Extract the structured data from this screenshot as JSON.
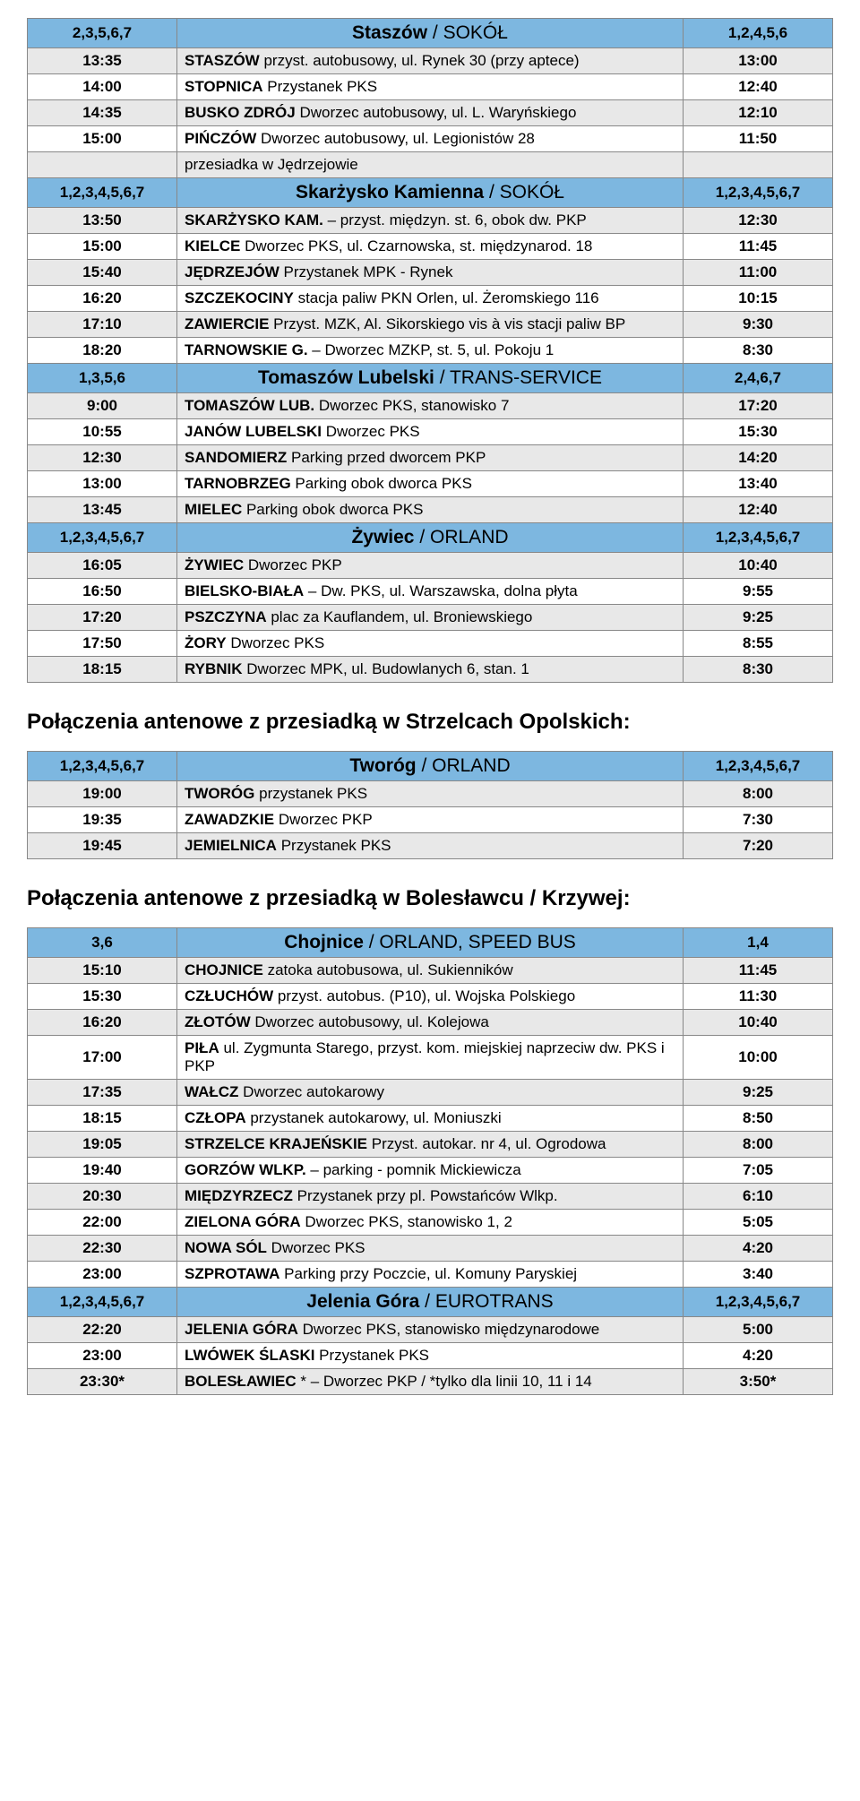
{
  "tables": [
    {
      "rows": [
        {
          "type": "header",
          "left": "2,3,5,6,7",
          "city": "Staszów",
          "operator": " / SOKÓŁ",
          "right": "1,2,4,5,6"
        },
        {
          "type": "grey",
          "left": "13:35",
          "stop": "<b>STASZÓW</b> przyst. autobusowy, ul. Rynek 30 (przy aptece)",
          "right": "13:00"
        },
        {
          "type": "white",
          "left": "14:00",
          "stop": "<b>STOPNICA</b> Przystanek PKS",
          "right": "12:40"
        },
        {
          "type": "grey",
          "left": "14:35",
          "stop": "<b>BUSKO ZDRÓJ</b> Dworzec autobusowy, ul. L. Waryńskiego",
          "right": "12:10"
        },
        {
          "type": "white",
          "left": "15:00",
          "stop": "<b>PIŃCZÓW</b> Dworzec autobusowy, ul. Legionistów 28",
          "right": "11:50"
        },
        {
          "type": "grey",
          "left": "",
          "stop": "przesiadka w Jędrzejowie",
          "right": ""
        },
        {
          "type": "header",
          "left": "1,2,3,4,5,6,7",
          "city": "Skarżysko Kamienna",
          "operator": " / SOKÓŁ",
          "right": "1,2,3,4,5,6,7"
        },
        {
          "type": "grey",
          "left": "13:50",
          "stop": "<b>SKARŻYSKO KAM.</b> – przyst. międzyn. st. 6, obok dw. PKP",
          "right": "12:30"
        },
        {
          "type": "white",
          "left": "15:00",
          "stop": "<b>KIELCE</b> Dworzec PKS, ul. Czarnowska, st. międzynarod. 18",
          "right": "11:45"
        },
        {
          "type": "grey",
          "left": "15:40",
          "stop": "<b>JĘDRZEJÓW</b> Przystanek MPK - Rynek",
          "right": "11:00"
        },
        {
          "type": "white",
          "left": "16:20",
          "stop": "<b>SZCZEKOCINY</b> stacja paliw PKN Orlen, ul. Żeromskiego 116",
          "right": "10:15"
        },
        {
          "type": "grey",
          "left": "17:10",
          "stop": "<b>ZAWIERCIE</b> Przyst. MZK, Al. Sikorskiego vis à vis stacji paliw BP",
          "right": "9:30"
        },
        {
          "type": "white",
          "left": "18:20",
          "stop": "<b>TARNOWSKIE G.</b> – Dworzec MZKP, st. 5, ul. Pokoju 1",
          "right": "8:30"
        },
        {
          "type": "header",
          "left": "1,3,5,6",
          "city": "Tomaszów Lubelski",
          "operator": " / TRANS-SERVICE",
          "right": "2,4,6,7"
        },
        {
          "type": "grey",
          "left": "9:00",
          "stop": "<b>TOMASZÓW LUB.</b> Dworzec PKS, stanowisko 7",
          "right": "17:20"
        },
        {
          "type": "white",
          "left": "10:55",
          "stop": "<b>JANÓW LUBELSKI</b> Dworzec PKS",
          "right": "15:30"
        },
        {
          "type": "grey",
          "left": "12:30",
          "stop": "<b>SANDOMIERZ</b> Parking przed dworcem PKP",
          "right": "14:20"
        },
        {
          "type": "white",
          "left": "13:00",
          "stop": "<b>TARNOBRZEG</b> Parking obok dworca PKS",
          "right": "13:40"
        },
        {
          "type": "grey",
          "left": "13:45",
          "stop": "<b>MIELEC</b> Parking obok dworca PKS",
          "right": "12:40"
        },
        {
          "type": "header",
          "left": "1,2,3,4,5,6,7",
          "city": "Żywiec",
          "operator": " / ORLAND",
          "right": "1,2,3,4,5,6,7"
        },
        {
          "type": "grey",
          "left": "16:05",
          "stop": "<b>ŻYWIEC</b> Dworzec PKP",
          "right": "10:40"
        },
        {
          "type": "white",
          "left": "16:50",
          "stop": "<b>BIELSKO-BIAŁA</b> – Dw. PKS, ul. Warszawska, dolna płyta",
          "right": "9:55"
        },
        {
          "type": "grey",
          "left": "17:20",
          "stop": "<b>PSZCZYNA</b> plac za Kauflandem, ul. Broniewskiego",
          "right": "9:25"
        },
        {
          "type": "white",
          "left": "17:50",
          "stop": "<b>ŻORY</b> Dworzec PKS",
          "right": "8:55"
        },
        {
          "type": "grey",
          "left": "18:15",
          "stop": "<b>RYBNIK</b> Dworzec MPK, ul. Budowlanych 6, stan. 1",
          "right": "8:30"
        }
      ]
    },
    {
      "title": "Połączenia antenowe z przesiadką w Strzelcach Opolskich:",
      "rows": [
        {
          "type": "header",
          "left": "1,2,3,4,5,6,7",
          "city": "Tworóg",
          "operator": " / ORLAND",
          "right": "1,2,3,4,5,6,7"
        },
        {
          "type": "grey",
          "left": "19:00",
          "stop": "<b>TWORÓG</b> przystanek PKS",
          "right": "8:00"
        },
        {
          "type": "white",
          "left": "19:35",
          "stop": "<b>ZAWADZKIE</b> Dworzec PKP",
          "right": "7:30"
        },
        {
          "type": "grey",
          "left": "19:45",
          "stop": "<b>JEMIELNICA</b> Przystanek PKS",
          "right": "7:20"
        }
      ]
    },
    {
      "title": "Połączenia antenowe z przesiadką w Bolesławcu / Krzywej:",
      "rows": [
        {
          "type": "header",
          "left": "3,6",
          "city": "Chojnice",
          "operator": " / ORLAND, SPEED BUS",
          "right": "1,4"
        },
        {
          "type": "grey",
          "left": "15:10",
          "stop": "<b>CHOJNICE</b> zatoka autobusowa, ul. Sukienników",
          "right": "11:45"
        },
        {
          "type": "white",
          "left": "15:30",
          "stop": "<b>CZŁUCHÓW</b> przyst. autobus. (P10), ul. Wojska Polskiego",
          "right": "11:30"
        },
        {
          "type": "grey",
          "left": "16:20",
          "stop": "<b>ZŁOTÓW</b> Dworzec autobusowy, ul. Kolejowa",
          "right": "10:40"
        },
        {
          "type": "white",
          "left": "17:00",
          "stop": "<b>PIŁA</b> ul. Zygmunta Starego, przyst. kom. miejskiej naprzeciw dw. PKS i PKP",
          "right": "10:00"
        },
        {
          "type": "grey",
          "left": "17:35",
          "stop": "<b>WAŁCZ</b> Dworzec autokarowy",
          "right": "9:25"
        },
        {
          "type": "white",
          "left": "18:15",
          "stop": "<b>CZŁOPA</b> przystanek autokarowy, ul. Moniuszki",
          "right": "8:50"
        },
        {
          "type": "grey",
          "left": "19:05",
          "stop": "<b>STRZELCE KRAJEŃSKIE</b> Przyst. autokar. nr 4, ul. Ogrodowa",
          "right": "8:00"
        },
        {
          "type": "white",
          "left": "19:40",
          "stop": "<b>GORZÓW WLKP.</b> – parking - pomnik Mickiewicza",
          "right": "7:05"
        },
        {
          "type": "grey",
          "left": "20:30",
          "stop": "<b>MIĘDZYRZECZ</b> Przystanek przy pl. Powstańców Wlkp.",
          "right": "6:10"
        },
        {
          "type": "white",
          "left": "22:00",
          "stop": "<b>ZIELONA GÓRA</b> Dworzec PKS, stanowisko 1, 2",
          "right": "5:05"
        },
        {
          "type": "grey",
          "left": "22:30",
          "stop": "<b>NOWA SÓL</b> Dworzec PKS",
          "right": "4:20"
        },
        {
          "type": "white",
          "left": "23:00",
          "stop": "<b>SZPROTAWA</b> Parking przy Poczcie, ul. Komuny Paryskiej",
          "right": "3:40"
        },
        {
          "type": "header",
          "left": "1,2,3,4,5,6,7",
          "city": "Jelenia Góra",
          "operator": " / EUROTRANS",
          "right": "1,2,3,4,5,6,7"
        },
        {
          "type": "grey",
          "left": "22:20",
          "stop": "<b>JELENIA GÓRA</b> Dworzec PKS, stanowisko międzynarodowe",
          "right": "5:00"
        },
        {
          "type": "white",
          "left": "23:00",
          "stop": "<b>LWÓWEK ŚLASKI</b> Przystanek PKS",
          "right": "4:20"
        },
        {
          "type": "grey",
          "left": "23:30*",
          "stop": "<b>BOLESŁAWIEC</b> * – Dworzec PKP / *tylko dla linii 10, 11 i 14",
          "right": "3:50*"
        }
      ]
    }
  ]
}
